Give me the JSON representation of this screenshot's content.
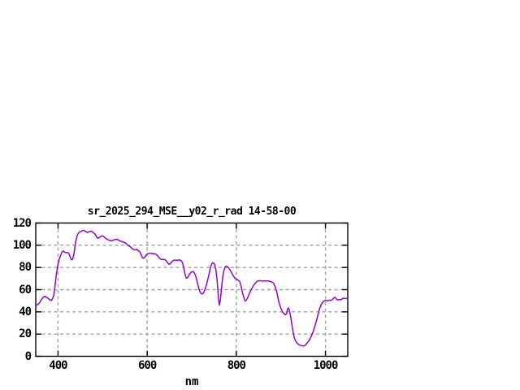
{
  "window": {
    "background": "#ffffff"
  },
  "chart_data": {
    "type": "line",
    "title": "sr_2025_294_MSE__y02_r_rad 14-58-00",
    "xlabel": "nm",
    "ylabel": "",
    "xlim": [
      350,
      1050
    ],
    "ylim": [
      0,
      120
    ],
    "xticks": [
      400,
      600,
      800,
      1000
    ],
    "yticks": [
      0,
      20,
      40,
      60,
      80,
      100,
      120
    ],
    "grid": true,
    "legend": "none",
    "line_color": "#9400d3",
    "grid_color": "#a0a0a0",
    "axis_color": "#000000",
    "points": [
      [
        350,
        45.5
      ],
      [
        354,
        46.5
      ],
      [
        358,
        48
      ],
      [
        362,
        50.5
      ],
      [
        366,
        53
      ],
      [
        370,
        54
      ],
      [
        374,
        53.2
      ],
      [
        378,
        52
      ],
      [
        382,
        50.8
      ],
      [
        385,
        50.3
      ],
      [
        388,
        52
      ],
      [
        391,
        56
      ],
      [
        394,
        66
      ],
      [
        397,
        76
      ],
      [
        400,
        83
      ],
      [
        403,
        88
      ],
      [
        406,
        91
      ],
      [
        409,
        94
      ],
      [
        412,
        94.8
      ],
      [
        415,
        93.6
      ],
      [
        418,
        93.3
      ],
      [
        421,
        93.6
      ],
      [
        424,
        92.8
      ],
      [
        427,
        90
      ],
      [
        430,
        86.8
      ],
      [
        433,
        87.5
      ],
      [
        436,
        93
      ],
      [
        439,
        102
      ],
      [
        442,
        107.5
      ],
      [
        445,
        110.5
      ],
      [
        448,
        111.8
      ],
      [
        451,
        112.3
      ],
      [
        454,
        113
      ],
      [
        457,
        113.5
      ],
      [
        460,
        113
      ],
      [
        463,
        112
      ],
      [
        466,
        111.5
      ],
      [
        469,
        112
      ],
      [
        472,
        112.4
      ],
      [
        475,
        112.7
      ],
      [
        478,
        111.8
      ],
      [
        481,
        110.6
      ],
      [
        484,
        109.6
      ],
      [
        487,
        107
      ],
      [
        490,
        106.3
      ],
      [
        493,
        107
      ],
      [
        496,
        108.2
      ],
      [
        499,
        108.4
      ],
      [
        502,
        108
      ],
      [
        505,
        107
      ],
      [
        508,
        105.8
      ],
      [
        511,
        105.2
      ],
      [
        514,
        104.6
      ],
      [
        517,
        104.2
      ],
      [
        520,
        104.1
      ],
      [
        523,
        104.4
      ],
      [
        526,
        104.9
      ],
      [
        529,
        105.2
      ],
      [
        532,
        105.3
      ],
      [
        535,
        104.9
      ],
      [
        538,
        104
      ],
      [
        541,
        103.7
      ],
      [
        544,
        103.2
      ],
      [
        547,
        102.8
      ],
      [
        550,
        102.4
      ],
      [
        553,
        101.5
      ],
      [
        556,
        100.2
      ],
      [
        559,
        99.4
      ],
      [
        562,
        98.6
      ],
      [
        565,
        97.6
      ],
      [
        568,
        96.6
      ],
      [
        571,
        95.9
      ],
      [
        574,
        95.8
      ],
      [
        577,
        96.2
      ],
      [
        580,
        95.2
      ],
      [
        583,
        94.3
      ],
      [
        586,
        92
      ],
      [
        589,
        89
      ],
      [
        592,
        88.3
      ],
      [
        595,
        89.5
      ],
      [
        598,
        91.3
      ],
      [
        601,
        92.4
      ],
      [
        604,
        92.7
      ],
      [
        607,
        92.8
      ],
      [
        610,
        92.6
      ],
      [
        613,
        92.4
      ],
      [
        616,
        92.4
      ],
      [
        619,
        92
      ],
      [
        622,
        91.2
      ],
      [
        625,
        89.8
      ],
      [
        628,
        88.2
      ],
      [
        631,
        87.4
      ],
      [
        634,
        87.1
      ],
      [
        637,
        87.2
      ],
      [
        640,
        87
      ],
      [
        643,
        86
      ],
      [
        646,
        84
      ],
      [
        649,
        82.8
      ],
      [
        652,
        83.4
      ],
      [
        655,
        84.8
      ],
      [
        658,
        86.2
      ],
      [
        661,
        86.7
      ],
      [
        664,
        86.5
      ],
      [
        667,
        86.4
      ],
      [
        670,
        86.7
      ],
      [
        673,
        86.8
      ],
      [
        676,
        86.2
      ],
      [
        679,
        84.5
      ],
      [
        682,
        80
      ],
      [
        685,
        73.5
      ],
      [
        688,
        70.3
      ],
      [
        691,
        71
      ],
      [
        694,
        73.3
      ],
      [
        697,
        75
      ],
      [
        700,
        76
      ],
      [
        703,
        76.3
      ],
      [
        706,
        75
      ],
      [
        709,
        72
      ],
      [
        712,
        67.5
      ],
      [
        715,
        62.5
      ],
      [
        718,
        58.5
      ],
      [
        721,
        56.4
      ],
      [
        724,
        56.2
      ],
      [
        727,
        57.5
      ],
      [
        730,
        60.5
      ],
      [
        733,
        64.5
      ],
      [
        736,
        69
      ],
      [
        739,
        74.5
      ],
      [
        742,
        80
      ],
      [
        745,
        83.5
      ],
      [
        748,
        84.3
      ],
      [
        751,
        83
      ],
      [
        754,
        78.5
      ],
      [
        757,
        68
      ],
      [
        760,
        52
      ],
      [
        762,
        46.2
      ],
      [
        764,
        50
      ],
      [
        766,
        58
      ],
      [
        768,
        66
      ],
      [
        770,
        72.5
      ],
      [
        772,
        77
      ],
      [
        775,
        80.4
      ],
      [
        778,
        81.2
      ],
      [
        781,
        80.4
      ],
      [
        784,
        79
      ],
      [
        787,
        77
      ],
      [
        790,
        74.8
      ],
      [
        793,
        72.6
      ],
      [
        796,
        70.8
      ],
      [
        799,
        69.6
      ],
      [
        802,
        69
      ],
      [
        805,
        68.4
      ],
      [
        808,
        67.2
      ],
      [
        811,
        62.5
      ],
      [
        814,
        57
      ],
      [
        817,
        52.5
      ],
      [
        820,
        49.8
      ],
      [
        823,
        50.8
      ],
      [
        826,
        53.4
      ],
      [
        829,
        56.2
      ],
      [
        832,
        58.8
      ],
      [
        835,
        61.2
      ],
      [
        838,
        63.2
      ],
      [
        841,
        65
      ],
      [
        844,
        66.4
      ],
      [
        847,
        67.6
      ],
      [
        850,
        68
      ],
      [
        853,
        68.2
      ],
      [
        856,
        67.9
      ],
      [
        859,
        67.7
      ],
      [
        862,
        67.8
      ],
      [
        865,
        68
      ],
      [
        868,
        67.9
      ],
      [
        871,
        67.8
      ],
      [
        874,
        67.7
      ],
      [
        877,
        67.4
      ],
      [
        880,
        66.9
      ],
      [
        883,
        66
      ],
      [
        886,
        63.8
      ],
      [
        889,
        60.5
      ],
      [
        892,
        55.5
      ],
      [
        895,
        49.5
      ],
      [
        898,
        45.5
      ],
      [
        901,
        42.2
      ],
      [
        904,
        39.8
      ],
      [
        907,
        38.3
      ],
      [
        910,
        37.4
      ],
      [
        913,
        38.5
      ],
      [
        915,
        42.5
      ],
      [
        917,
        43.6
      ],
      [
        919,
        41.5
      ],
      [
        922,
        35.5
      ],
      [
        925,
        27.5
      ],
      [
        928,
        20.5
      ],
      [
        931,
        15.5
      ],
      [
        934,
        13
      ],
      [
        937,
        11.6
      ],
      [
        940,
        10.6
      ],
      [
        943,
        10
      ],
      [
        946,
        9.6
      ],
      [
        949,
        9.4
      ],
      [
        952,
        9.3
      ],
      [
        955,
        10.2
      ],
      [
        958,
        11.6
      ],
      [
        961,
        13
      ],
      [
        964,
        14.8
      ],
      [
        967,
        17
      ],
      [
        970,
        19.8
      ],
      [
        973,
        23
      ],
      [
        976,
        26.8
      ],
      [
        979,
        31
      ],
      [
        982,
        35.5
      ],
      [
        985,
        40
      ],
      [
        988,
        44.2
      ],
      [
        991,
        47
      ],
      [
        994,
        48.8
      ],
      [
        997,
        49.8
      ],
      [
        1000,
        50.3
      ],
      [
        1003,
        50.2
      ],
      [
        1006,
        49.9
      ],
      [
        1009,
        50.6
      ],
      [
        1012,
        50.2
      ],
      [
        1015,
        50.9
      ],
      [
        1018,
        52.2
      ],
      [
        1021,
        53.2
      ],
      [
        1024,
        51.8
      ],
      [
        1027,
        50.7
      ],
      [
        1030,
        51.1
      ],
      [
        1033,
        50.8
      ],
      [
        1036,
        51.4
      ],
      [
        1039,
        52
      ],
      [
        1042,
        52.4
      ],
      [
        1045,
        51.9
      ],
      [
        1048,
        52.1
      ],
      [
        1050,
        52.6
      ]
    ]
  }
}
